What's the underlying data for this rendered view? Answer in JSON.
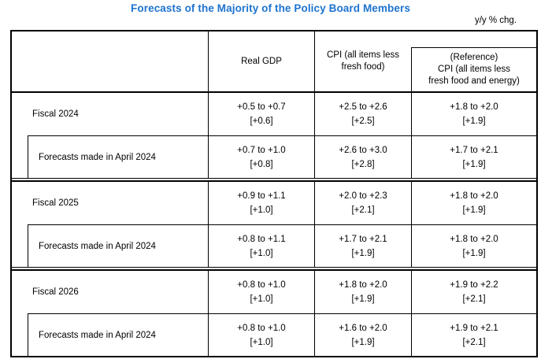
{
  "page": {
    "title": "Forecasts of the Majority of the Policy Board Members",
    "unit_note": "y/y % chg."
  },
  "colors": {
    "title_blue": "#1E73CF",
    "table_border": "#000000"
  },
  "table": {
    "header": {
      "row_label": "",
      "gdp": "Real GDP",
      "cpi": "CPI (all items less\nfresh food)",
      "reference": "(Reference)\nCPI (all items less\nfresh food and energy)"
    },
    "sections": [
      {
        "label": "Fiscal 2024",
        "current": {
          "gdp": "+0.5 to +0.7",
          "gdp_median": "[+0.6]",
          "cpi": "+2.5 to +2.6",
          "cpi_median": "[+2.5]",
          "ref": "+1.8 to +2.0",
          "ref_median": "[+1.9]"
        },
        "april_label": "Forecasts made in April 2024",
        "april": {
          "gdp": "+0.7 to +1.0",
          "gdp_median": "[+0.8]",
          "cpi": "+2.6 to +3.0",
          "cpi_median": "[+2.8]",
          "ref": "+1.7 to +2.1",
          "ref_median": "[+1.9]"
        }
      },
      {
        "label": "Fiscal 2025",
        "current": {
          "gdp": "+0.9 to +1.1",
          "gdp_median": "[+1.0]",
          "cpi": "+2.0 to +2.3",
          "cpi_median": "[+2.1]",
          "ref": "+1.8 to +2.0",
          "ref_median": "[+1.9]"
        },
        "april_label": "Forecasts made in April 2024",
        "april": {
          "gdp": "+0.8 to +1.1",
          "gdp_median": "[+1.0]",
          "cpi": "+1.7 to +2.1",
          "cpi_median": "[+1.9]",
          "ref": "+1.8 to +2.0",
          "ref_median": "[+1.9]"
        }
      },
      {
        "label": "Fiscal 2026",
        "current": {
          "gdp": "+0.8 to +1.0",
          "gdp_median": "[+1.0]",
          "cpi": "+1.8 to +2.0",
          "cpi_median": "[+1.9]",
          "ref": "+1.9 to +2.2",
          "ref_median": "[+2.1]"
        },
        "april_label": "Forecasts made in April 2024",
        "april": {
          "gdp": "+0.8 to +1.0",
          "gdp_median": "[+1.0]",
          "cpi": "+1.6 to +2.0",
          "cpi_median": "[+1.9]",
          "ref": "+1.9 to +2.1",
          "ref_median": "[+2.1]"
        }
      }
    ]
  }
}
